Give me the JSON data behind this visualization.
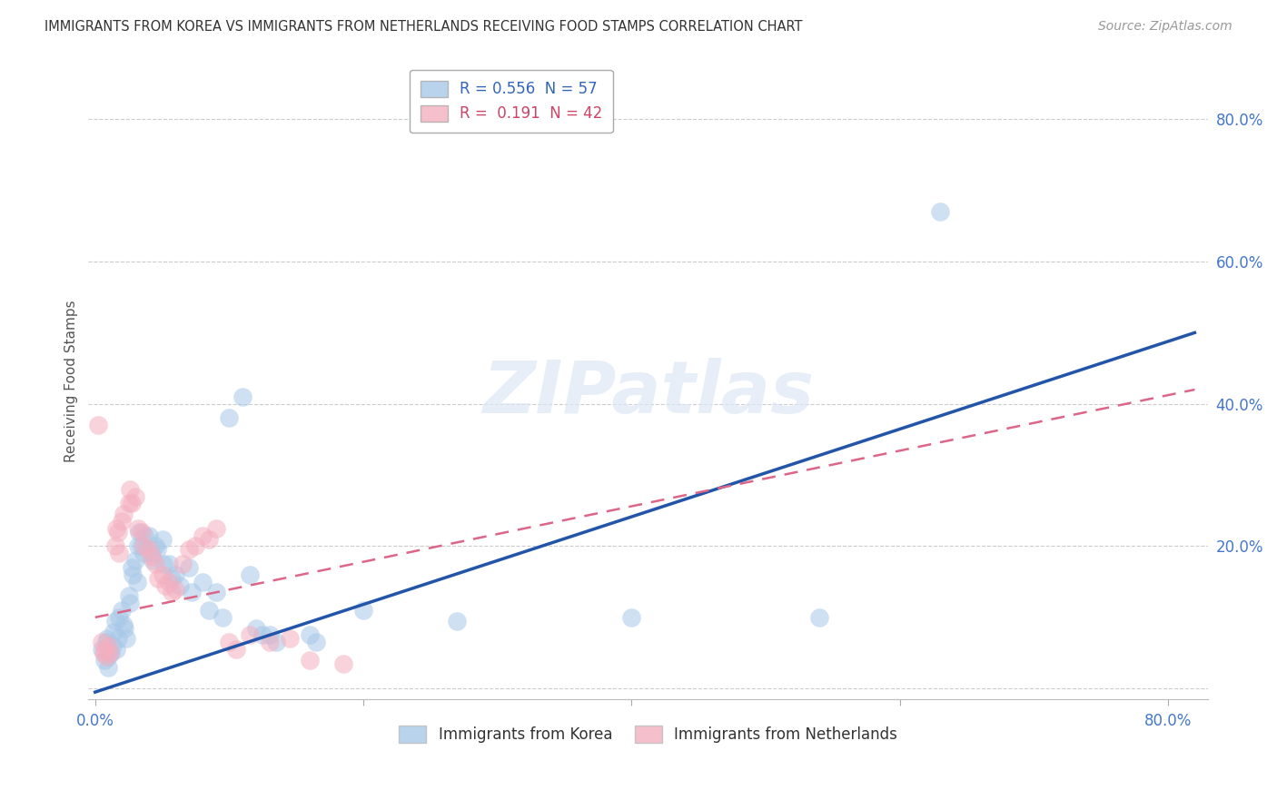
{
  "title": "IMMIGRANTS FROM KOREA VS IMMIGRANTS FROM NETHERLANDS RECEIVING FOOD STAMPS CORRELATION CHART",
  "source": "Source: ZipAtlas.com",
  "ylabel": "Receiving Food Stamps",
  "y_ticks": [
    0.0,
    0.2,
    0.4,
    0.6,
    0.8
  ],
  "y_tick_labels": [
    "",
    "20.0%",
    "40.0%",
    "60.0%",
    "80.0%"
  ],
  "x_ticks": [
    0.0,
    0.2,
    0.4,
    0.6,
    0.8
  ],
  "x_tick_labels": [
    "0.0%",
    "",
    "",
    "",
    "80.0%"
  ],
  "xlim": [
    -0.005,
    0.83
  ],
  "ylim": [
    -0.015,
    0.88
  ],
  "watermark": "ZIPatlas",
  "korea_color": "#a8c8e8",
  "netherlands_color": "#f4afc0",
  "korea_line_color": "#2255aa",
  "netherlands_line_color": "#dd6688",
  "korea_scatter": [
    [
      0.005,
      0.055
    ],
    [
      0.007,
      0.04
    ],
    [
      0.008,
      0.065
    ],
    [
      0.009,
      0.07
    ],
    [
      0.01,
      0.045
    ],
    [
      0.01,
      0.03
    ],
    [
      0.012,
      0.05
    ],
    [
      0.013,
      0.06
    ],
    [
      0.014,
      0.08
    ],
    [
      0.015,
      0.095
    ],
    [
      0.016,
      0.055
    ],
    [
      0.017,
      0.07
    ],
    [
      0.018,
      0.1
    ],
    [
      0.02,
      0.11
    ],
    [
      0.021,
      0.09
    ],
    [
      0.022,
      0.085
    ],
    [
      0.023,
      0.07
    ],
    [
      0.025,
      0.13
    ],
    [
      0.026,
      0.12
    ],
    [
      0.027,
      0.17
    ],
    [
      0.028,
      0.16
    ],
    [
      0.03,
      0.18
    ],
    [
      0.031,
      0.15
    ],
    [
      0.032,
      0.2
    ],
    [
      0.033,
      0.22
    ],
    [
      0.035,
      0.2
    ],
    [
      0.036,
      0.19
    ],
    [
      0.037,
      0.215
    ],
    [
      0.04,
      0.215
    ],
    [
      0.042,
      0.19
    ],
    [
      0.043,
      0.18
    ],
    [
      0.045,
      0.2
    ],
    [
      0.046,
      0.195
    ],
    [
      0.05,
      0.21
    ],
    [
      0.051,
      0.175
    ],
    [
      0.055,
      0.175
    ],
    [
      0.057,
      0.155
    ],
    [
      0.06,
      0.16
    ],
    [
      0.063,
      0.145
    ],
    [
      0.07,
      0.17
    ],
    [
      0.072,
      0.135
    ],
    [
      0.08,
      0.15
    ],
    [
      0.085,
      0.11
    ],
    [
      0.09,
      0.135
    ],
    [
      0.095,
      0.1
    ],
    [
      0.1,
      0.38
    ],
    [
      0.11,
      0.41
    ],
    [
      0.115,
      0.16
    ],
    [
      0.12,
      0.085
    ],
    [
      0.125,
      0.075
    ],
    [
      0.13,
      0.075
    ],
    [
      0.135,
      0.065
    ],
    [
      0.16,
      0.075
    ],
    [
      0.165,
      0.065
    ],
    [
      0.2,
      0.11
    ],
    [
      0.27,
      0.095
    ],
    [
      0.4,
      0.1
    ],
    [
      0.54,
      0.1
    ],
    [
      0.63,
      0.67
    ]
  ],
  "netherlands_scatter": [
    [
      0.002,
      0.37
    ],
    [
      0.005,
      0.065
    ],
    [
      0.006,
      0.05
    ],
    [
      0.007,
      0.055
    ],
    [
      0.008,
      0.045
    ],
    [
      0.01,
      0.06
    ],
    [
      0.011,
      0.05
    ],
    [
      0.015,
      0.2
    ],
    [
      0.016,
      0.225
    ],
    [
      0.017,
      0.22
    ],
    [
      0.018,
      0.19
    ],
    [
      0.02,
      0.235
    ],
    [
      0.021,
      0.245
    ],
    [
      0.025,
      0.26
    ],
    [
      0.026,
      0.28
    ],
    [
      0.027,
      0.26
    ],
    [
      0.03,
      0.27
    ],
    [
      0.032,
      0.225
    ],
    [
      0.035,
      0.22
    ],
    [
      0.036,
      0.2
    ],
    [
      0.04,
      0.195
    ],
    [
      0.042,
      0.185
    ],
    [
      0.045,
      0.175
    ],
    [
      0.047,
      0.155
    ],
    [
      0.05,
      0.16
    ],
    [
      0.052,
      0.145
    ],
    [
      0.055,
      0.15
    ],
    [
      0.057,
      0.135
    ],
    [
      0.06,
      0.14
    ],
    [
      0.065,
      0.175
    ],
    [
      0.07,
      0.195
    ],
    [
      0.075,
      0.2
    ],
    [
      0.08,
      0.215
    ],
    [
      0.085,
      0.21
    ],
    [
      0.09,
      0.225
    ],
    [
      0.1,
      0.065
    ],
    [
      0.105,
      0.055
    ],
    [
      0.115,
      0.075
    ],
    [
      0.13,
      0.065
    ],
    [
      0.145,
      0.07
    ],
    [
      0.16,
      0.04
    ],
    [
      0.185,
      0.035
    ]
  ],
  "korea_line_x": [
    0.0,
    0.82
  ],
  "korea_line_y": [
    -0.005,
    0.5
  ],
  "netherlands_line_x": [
    0.0,
    0.82
  ],
  "netherlands_line_y": [
    0.1,
    0.42
  ]
}
